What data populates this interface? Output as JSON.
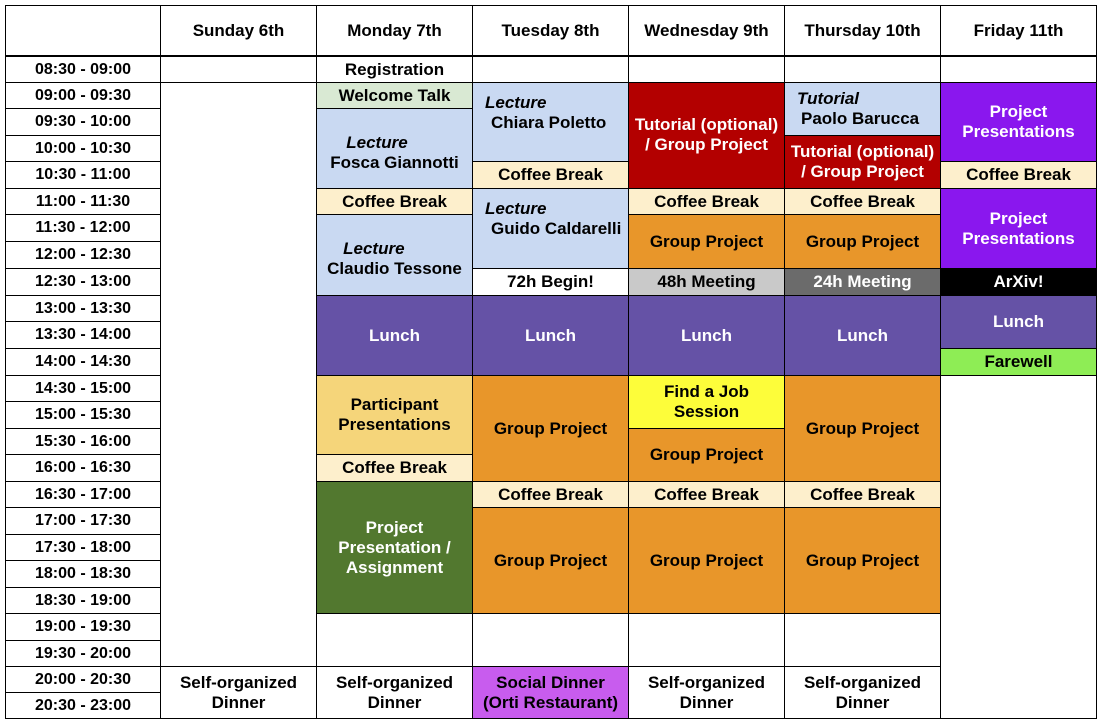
{
  "days": [
    {
      "key": "sun",
      "label": "Sunday 6th"
    },
    {
      "key": "mon",
      "label": "Monday 7th"
    },
    {
      "key": "tue",
      "label": "Tuesday 8th"
    },
    {
      "key": "wed",
      "label": "Wednesday 9th"
    },
    {
      "key": "thu",
      "label": "Thursday 10th"
    },
    {
      "key": "fri",
      "label": "Friday 11th"
    }
  ],
  "times": [
    "08:30 - 09:00",
    "09:00 - 09:30",
    "09:30 - 10:00",
    "10:00 - 10:30",
    "10:30 - 11:00",
    "11:00 - 11:30",
    "11:30 - 12:00",
    "12:00 - 12:30",
    "12:30 - 13:00",
    "13:00 - 13:30",
    "13:30 - 14:00",
    "14:00 - 14:30",
    "14:30 - 15:00",
    "15:00 - 15:30",
    "15:30 - 16:00",
    "16:00 - 16:30",
    "16:30 - 17:00",
    "17:00 - 17:30",
    "17:30 - 18:00",
    "18:00 - 18:30",
    "18:30 - 19:00",
    "19:00 - 19:30",
    "19:30 - 20:00",
    "20:00 - 20:30",
    "20:30 - 23:00"
  ],
  "colors": {
    "lecture": "#c9d9f2",
    "break": "#fdefcc",
    "lunch": "#6552a6",
    "project": "#e8962a",
    "tutorial": "#b30000",
    "fri_project": "#8a17ee",
    "welcome": "#d9e9d3",
    "participant": "#f5d57a",
    "presentation": "#52782f",
    "job": "#fdfd3a",
    "m48": "#c9c9c9",
    "m24": "#6b6b6b",
    "arxiv": "#000000",
    "farewell": "#8eed55",
    "social": "#c85cee",
    "white": "#ffffff"
  },
  "events": [
    {
      "day": "mon",
      "start": 0,
      "end": 1,
      "color": "white",
      "text": "Registration"
    },
    {
      "day": "fri",
      "start": 0,
      "end": 1,
      "color": "white",
      "text": ""
    },
    {
      "day": "tue",
      "start": 0,
      "end": 1,
      "color": "white",
      "text": ""
    },
    {
      "day": "wed",
      "start": 0,
      "end": 1,
      "color": "white",
      "text": ""
    },
    {
      "day": "thu",
      "start": 0,
      "end": 1,
      "color": "white",
      "text": ""
    },
    {
      "day": "sun",
      "start": 0,
      "end": 1,
      "color": "white",
      "text": ""
    },
    {
      "day": "sun",
      "start": 1,
      "end": 23,
      "color": "white",
      "text": ""
    },
    {
      "day": "mon",
      "start": 1,
      "end": 2,
      "color": "welcome",
      "text": "Welcome Talk"
    },
    {
      "day": "mon",
      "start": 2,
      "end": 5,
      "color": "lecture",
      "em": "Lecture",
      "text": "Fosca Giannotti"
    },
    {
      "day": "mon",
      "start": 5,
      "end": 6,
      "color": "break",
      "text": "Coffee Break"
    },
    {
      "day": "mon",
      "start": 6,
      "end": 9,
      "color": "lecture",
      "em": "Lecture",
      "text": "Claudio Tessone"
    },
    {
      "day": "mon",
      "start": 9,
      "end": 12,
      "color": "lunch",
      "light": true,
      "text": "Lunch"
    },
    {
      "day": "mon",
      "start": 12,
      "end": 15,
      "color": "participant",
      "text": "Participant\nPresentations"
    },
    {
      "day": "mon",
      "start": 15,
      "end": 16,
      "color": "break",
      "text": "Coffee Break"
    },
    {
      "day": "mon",
      "start": 16,
      "end": 21,
      "color": "presentation",
      "light": true,
      "text": "Project\nPresentation /\nAssignment"
    },
    {
      "day": "mon",
      "start": 21,
      "end": 23,
      "color": "white",
      "text": ""
    },
    {
      "day": "tue",
      "start": 1,
      "end": 4,
      "color": "lecture",
      "em": "Lecture",
      "text": "Chiara Poletto",
      "topleft": true
    },
    {
      "day": "tue",
      "start": 4,
      "end": 5,
      "color": "break",
      "text": "Coffee Break"
    },
    {
      "day": "tue",
      "start": 5,
      "end": 8,
      "color": "lecture",
      "em": "Lecture",
      "text": "Guido Caldarelli",
      "topleft": true
    },
    {
      "day": "tue",
      "start": 8,
      "end": 9,
      "color": "white",
      "text": "72h Begin!"
    },
    {
      "day": "tue",
      "start": 9,
      "end": 12,
      "color": "lunch",
      "light": true,
      "text": "Lunch"
    },
    {
      "day": "tue",
      "start": 12,
      "end": 16,
      "color": "project",
      "text": "Group Project"
    },
    {
      "day": "tue",
      "start": 16,
      "end": 17,
      "color": "break",
      "text": "Coffee Break"
    },
    {
      "day": "tue",
      "start": 17,
      "end": 21,
      "color": "project",
      "text": "Group Project"
    },
    {
      "day": "tue",
      "start": 21,
      "end": 23,
      "color": "white",
      "text": ""
    },
    {
      "day": "wed",
      "start": 1,
      "end": 5,
      "color": "tutorial",
      "light": true,
      "text": "Tutorial (optional)\n/ Group Project",
      "valign": "upper"
    },
    {
      "day": "wed",
      "start": 5,
      "end": 6,
      "color": "break",
      "text": "Coffee Break"
    },
    {
      "day": "wed",
      "start": 6,
      "end": 8,
      "color": "project",
      "text": "Group Project"
    },
    {
      "day": "wed",
      "start": 8,
      "end": 9,
      "color": "m48",
      "text": "48h Meeting"
    },
    {
      "day": "wed",
      "start": 9,
      "end": 12,
      "color": "lunch",
      "light": true,
      "text": "Lunch"
    },
    {
      "day": "wed",
      "start": 12,
      "end": 14,
      "color": "job",
      "text": "Find a Job\nSession"
    },
    {
      "day": "wed",
      "start": 14,
      "end": 16,
      "color": "project",
      "text": "Group Project"
    },
    {
      "day": "wed",
      "start": 16,
      "end": 17,
      "color": "break",
      "text": "Coffee Break"
    },
    {
      "day": "wed",
      "start": 17,
      "end": 21,
      "color": "project",
      "text": "Group Project"
    },
    {
      "day": "wed",
      "start": 21,
      "end": 23,
      "color": "white",
      "text": ""
    },
    {
      "day": "thu",
      "start": 1,
      "end": 3,
      "color": "lecture",
      "em": "Tutorial",
      "text": "Paolo Barucca",
      "topleft": true,
      "tight": true
    },
    {
      "day": "thu",
      "start": 3,
      "end": 5,
      "color": "tutorial",
      "light": true,
      "text": "Tutorial (optional)\n/ Group Project"
    },
    {
      "day": "thu",
      "start": 5,
      "end": 6,
      "color": "break",
      "text": "Coffee Break"
    },
    {
      "day": "thu",
      "start": 6,
      "end": 8,
      "color": "project",
      "text": "Group Project"
    },
    {
      "day": "thu",
      "start": 8,
      "end": 9,
      "color": "m24",
      "light": true,
      "text": "24h Meeting"
    },
    {
      "day": "thu",
      "start": 9,
      "end": 12,
      "color": "lunch",
      "light": true,
      "text": "Lunch"
    },
    {
      "day": "thu",
      "start": 12,
      "end": 16,
      "color": "project",
      "text": "Group Project"
    },
    {
      "day": "thu",
      "start": 16,
      "end": 17,
      "color": "break",
      "text": "Coffee Break"
    },
    {
      "day": "thu",
      "start": 17,
      "end": 21,
      "color": "project",
      "text": "Group Project"
    },
    {
      "day": "thu",
      "start": 21,
      "end": 23,
      "color": "white",
      "text": ""
    },
    {
      "day": "fri",
      "start": 1,
      "end": 4,
      "color": "fri_project",
      "light": true,
      "text": "Project\nPresentations"
    },
    {
      "day": "fri",
      "start": 4,
      "end": 5,
      "color": "break",
      "text": "Coffee Break"
    },
    {
      "day": "fri",
      "start": 5,
      "end": 8,
      "color": "fri_project",
      "light": true,
      "text": "Project\nPresentations"
    },
    {
      "day": "fri",
      "start": 8,
      "end": 9,
      "color": "arxiv",
      "light": true,
      "text": "ArXiv!"
    },
    {
      "day": "fri",
      "start": 9,
      "end": 11,
      "color": "lunch",
      "light": true,
      "text": "Lunch"
    },
    {
      "day": "fri",
      "start": 11,
      "end": 12,
      "color": "farewell",
      "text": "Farewell"
    },
    {
      "day": "fri",
      "start": 12,
      "end": 25,
      "color": "white",
      "text": ""
    },
    {
      "day": "sun",
      "start": 23,
      "end": 25,
      "color": "white",
      "text": "Self-organized\nDinner"
    },
    {
      "day": "mon",
      "start": 23,
      "end": 25,
      "color": "white",
      "text": "Self-organized\nDinner"
    },
    {
      "day": "tue",
      "start": 23,
      "end": 25,
      "color": "social",
      "text": "Social Dinner\n(Orti Restaurant)"
    },
    {
      "day": "wed",
      "start": 23,
      "end": 25,
      "color": "white",
      "text": "Self-organized\nDinner"
    },
    {
      "day": "thu",
      "start": 23,
      "end": 25,
      "color": "white",
      "text": "Self-organized\nDinner"
    }
  ]
}
